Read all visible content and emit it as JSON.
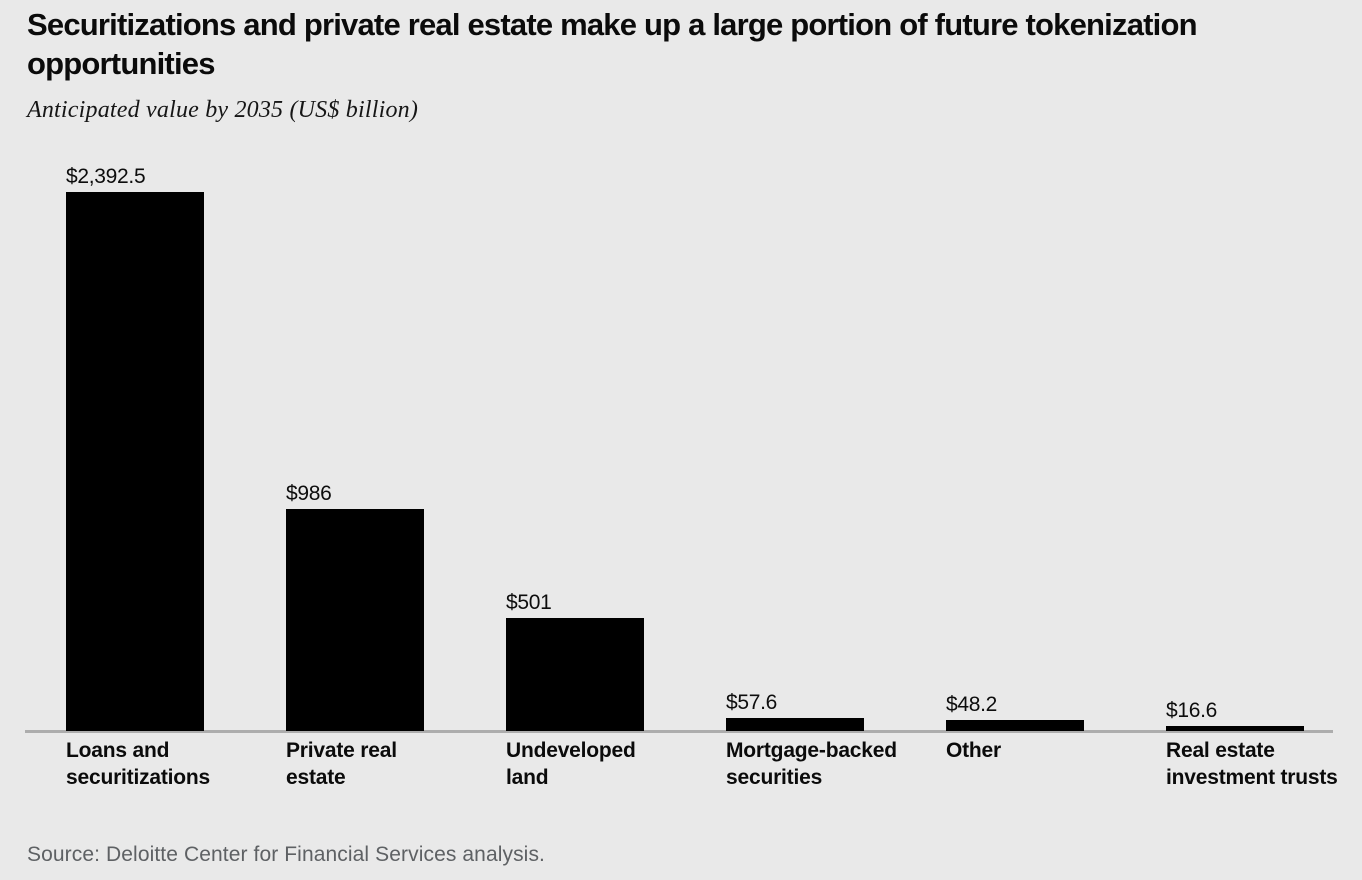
{
  "header": {
    "title": "Securitizations and private real estate make up a large portion of future tokenization\nopportunities",
    "subtitle": "Anticipated value by 2035 (US$ billion)"
  },
  "source_note": "Source: Deloitte Center for Financial Services analysis.",
  "colors": {
    "background": "#e9e9e9",
    "bar": "#000000",
    "axis_line": "#adadad",
    "title_text": "#0b0b0b",
    "source_text": "#5e6164"
  },
  "chart_data": {
    "type": "bar",
    "title": "Securitizations and private real estate make up a large portion of future tokenization opportunities",
    "subtitle": "Anticipated value by 2035 (US$ billion)",
    "unit": "US$ billion",
    "categories": [
      "Loans and securitizations",
      "Private real estate",
      "Undeveloped land",
      "Mortgage-backed securities",
      "Other",
      "Real estate investment trusts"
    ],
    "category_labels_display": [
      "Loans and\nsecuritizations",
      "Private real\nestate",
      "Undeveloped\nland",
      "Mortgage-backed\nsecurities",
      "Other",
      "Real estate\ninvestment trusts"
    ],
    "values": [
      2392.5,
      986,
      501,
      57.6,
      48.2,
      16.6
    ],
    "value_labels": [
      "$2,392.5",
      "$986",
      "$501",
      "$57.6",
      "$48.2",
      "$16.6"
    ],
    "xlabel": "",
    "ylabel": "Anticipated value by 2035 (US$ billion)",
    "ylim": [
      0,
      2392.5
    ],
    "grid": false,
    "legend": null,
    "value_label_position": "above-bar",
    "orientation": "vertical"
  }
}
